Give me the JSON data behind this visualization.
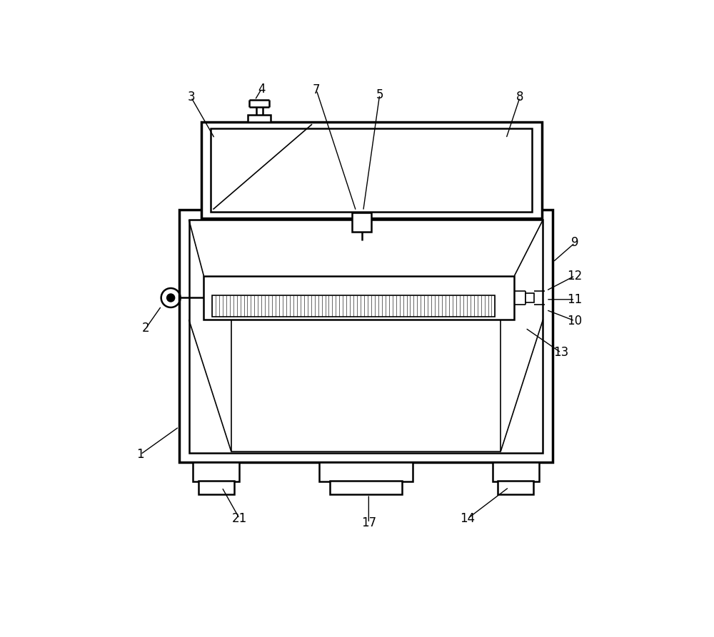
{
  "bg_color": "#ffffff",
  "line_color": "#000000",
  "lw_thin": 1.2,
  "lw_med": 1.8,
  "lw_thick": 2.5,
  "fig_width": 10.0,
  "fig_height": 8.93
}
